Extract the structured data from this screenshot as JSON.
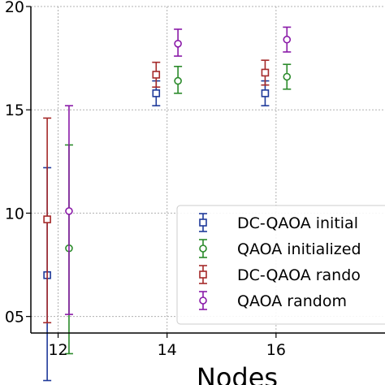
{
  "chart_data": {
    "type": "scatter",
    "xlabel": "Nodes",
    "ylabel": "",
    "xlim": [
      11.5,
      18.0
    ],
    "ylim": [
      4.2,
      20.0
    ],
    "x_ticks": [
      12,
      14,
      16
    ],
    "x_tick_labels": [
      "12",
      "14",
      "16"
    ],
    "y_ticks": [
      5,
      10,
      15,
      20
    ],
    "y_tick_labels": [
      "05",
      "10",
      "15",
      "20"
    ],
    "grid": true,
    "legend_position": "lower-right",
    "series": [
      {
        "name": "DC-QAOA initial",
        "color": "#1f3a9a",
        "marker": "square",
        "points": [
          {
            "x": 11.8,
            "y": 7.0,
            "low": 1.9,
            "high": 12.2
          },
          {
            "x": 13.8,
            "y": 15.8,
            "low": 15.2,
            "high": 16.4
          },
          {
            "x": 15.8,
            "y": 15.8,
            "low": 15.2,
            "high": 16.4
          }
        ]
      },
      {
        "name": "QAOA initialized",
        "color": "#2a8a2a",
        "marker": "circle",
        "points": [
          {
            "x": 12.2,
            "y": 8.3,
            "low": 3.2,
            "high": 13.3
          },
          {
            "x": 14.2,
            "y": 16.4,
            "low": 15.8,
            "high": 17.1
          },
          {
            "x": 16.2,
            "y": 16.6,
            "low": 16.0,
            "high": 17.2
          }
        ]
      },
      {
        "name": "DC-QAOA rando",
        "color": "#a52a2a",
        "marker": "square",
        "points": [
          {
            "x": 11.8,
            "y": 9.7,
            "low": 4.7,
            "high": 14.6
          },
          {
            "x": 13.8,
            "y": 16.7,
            "low": 16.1,
            "high": 17.3
          },
          {
            "x": 15.8,
            "y": 16.8,
            "low": 16.2,
            "high": 17.4
          }
        ]
      },
      {
        "name": "QAOA random",
        "color": "#8a1aa8",
        "marker": "circle",
        "points": [
          {
            "x": 12.2,
            "y": 10.1,
            "low": 5.1,
            "high": 15.2
          },
          {
            "x": 14.2,
            "y": 18.2,
            "low": 17.6,
            "high": 18.9
          },
          {
            "x": 16.2,
            "y": 18.4,
            "low": 17.8,
            "high": 19.0
          }
        ]
      }
    ]
  }
}
